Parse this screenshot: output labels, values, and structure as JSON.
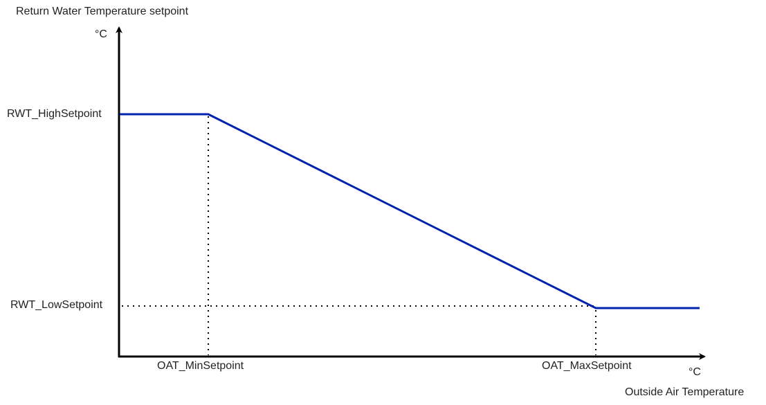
{
  "title": "Return Water Temperature setpoint",
  "y_unit": "°C",
  "x_unit": "°C",
  "x_axis_label": "Outside Air Temperature",
  "y_labels": {
    "high": "RWT_HighSetpoint",
    "low": "RWT_LowSetpoint"
  },
  "x_labels": {
    "min": "OAT_MinSetpoint",
    "max": "OAT_MaxSetpoint"
  },
  "colors": {
    "curve": "#0021b0",
    "axis": "#000000",
    "guide": "#000000"
  }
}
